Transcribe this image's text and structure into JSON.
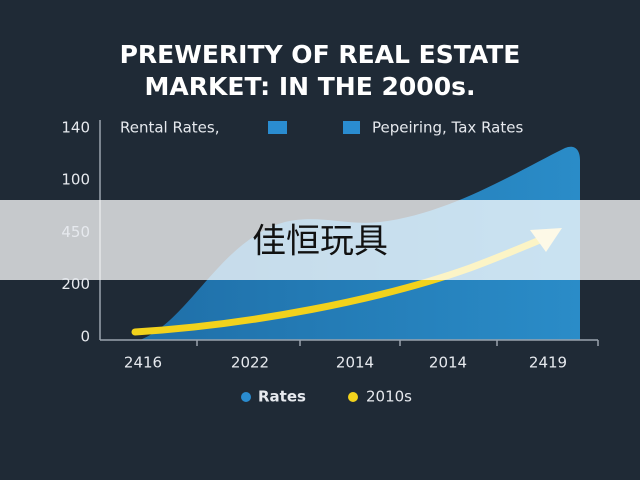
{
  "title_lines": [
    "PREWERITY OF REAL ESTATE",
    "MARKET: IN THE 2000s."
  ],
  "top_legend": [
    "Rental Rates,",
    "Pepeiring, Tax Rates"
  ],
  "y_axis_labels": [
    "140",
    "100",
    "450",
    "200",
    "0"
  ],
  "x_axis_labels": [
    "2416",
    "2022",
    "2014",
    "2014",
    "2419"
  ],
  "bottom_legend": [
    "Rates",
    "2010s"
  ],
  "watermark": "佳恒玩具"
}
